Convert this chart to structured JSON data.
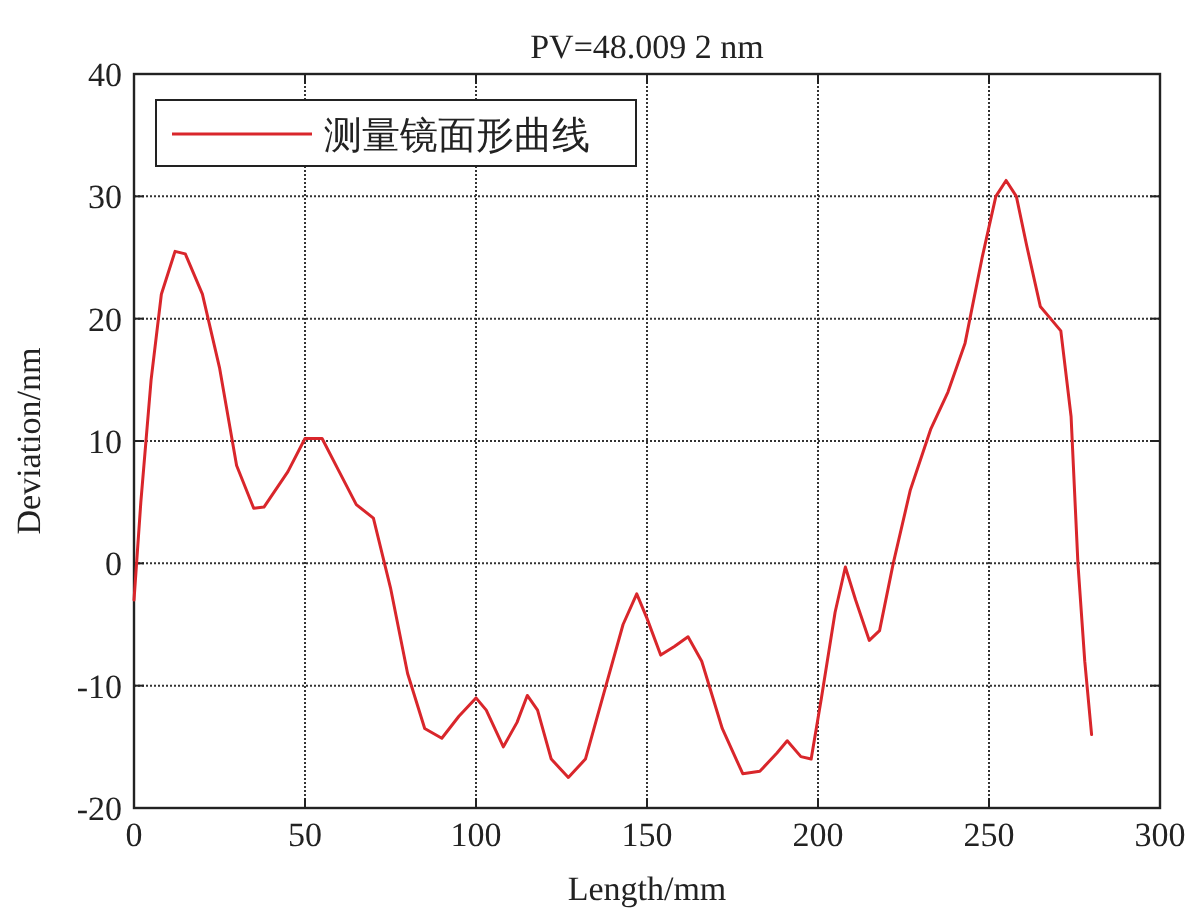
{
  "chart_data": {
    "type": "line",
    "title": "PV=48.009 2 nm",
    "xlabel": "Length/mm",
    "ylabel": "Deviation/nm",
    "xlim": [
      0,
      300
    ],
    "xticks": [
      0,
      50,
      100,
      150,
      200,
      250,
      300
    ],
    "ylim": [
      -20,
      40
    ],
    "yticks": [
      -20,
      -10,
      0,
      10,
      20,
      30,
      40
    ],
    "grid": true,
    "legend": "top left",
    "line_style": "solid",
    "marker": "none",
    "series": [
      {
        "name": "测量镜面形曲线",
        "color": "#d9262b",
        "x": [
          0,
          2,
          5,
          8,
          12,
          15,
          20,
          25,
          30,
          35,
          38,
          45,
          50,
          55,
          60,
          65,
          70,
          75,
          80,
          85,
          90,
          95,
          100,
          103,
          108,
          112,
          115,
          118,
          122,
          127,
          132,
          138,
          143,
          147,
          150,
          154,
          158,
          162,
          166,
          172,
          178,
          183,
          188,
          191,
          195,
          198,
          201,
          205,
          208,
          211,
          215,
          218,
          222,
          227,
          233,
          238,
          243,
          248,
          252,
          255,
          258,
          261,
          265,
          268,
          271,
          274,
          276,
          278,
          280
        ],
        "values": [
          -3,
          5,
          15,
          22,
          25.5,
          25.3,
          22,
          16,
          8,
          4.5,
          4.6,
          7.5,
          10.2,
          10.2,
          7.5,
          4.8,
          3.7,
          -2,
          -9,
          -13.5,
          -14.3,
          -12.5,
          -11,
          -12,
          -15,
          -13,
          -10.8,
          -12,
          -16,
          -17.5,
          -16,
          -10,
          -5,
          -2.5,
          -4.5,
          -7.5,
          -6.8,
          -6,
          -8,
          -13.5,
          -17.2,
          -17,
          -15.5,
          -14.5,
          -15.8,
          -16,
          -11,
          -4,
          -0.3,
          -3,
          -6.3,
          -5.5,
          0,
          6,
          11,
          14,
          18,
          25,
          30,
          31.3,
          30,
          26,
          21,
          20,
          19,
          12,
          0,
          -8,
          -14
        ]
      }
    ]
  }
}
